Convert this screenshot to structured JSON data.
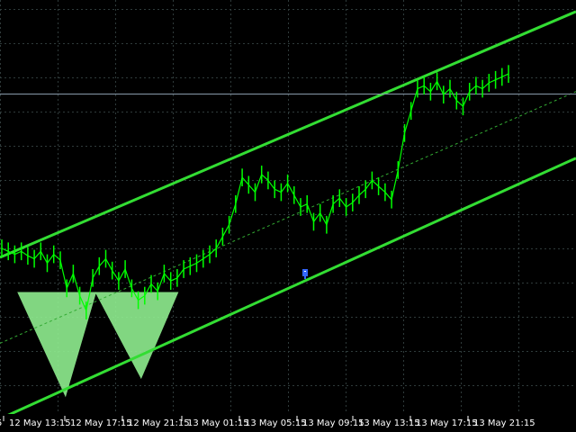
{
  "window": {
    "title": ""
  },
  "colors": {
    "background": "#000000",
    "grid": "#2f3b3b",
    "candles": "#00ff00",
    "channel": "#33dd33",
    "channel_mid": "#33aa33",
    "triangles": "#90ee90",
    "price_line": "#8899aa",
    "axis_text": "#ffffff"
  },
  "chart_data": {
    "type": "line",
    "title": "",
    "xlabel": "",
    "ylabel": "",
    "x_ticks": [
      "12 May 13:15",
      "12 May 17:15",
      "12 May 21:15",
      "13 May 01:15",
      "13 May 05:15",
      "13 May 09:15",
      "13 May 13:15",
      "13 May 17:15",
      "13 May 21:15"
    ],
    "grid": true,
    "legend": "none",
    "series": [
      {
        "values": [
          0.62,
          0.6,
          0.58,
          0.6,
          0.57,
          0.55,
          0.6,
          0.52,
          0.58,
          0.54,
          0.35,
          0.45,
          0.3,
          0.2,
          0.42,
          0.5,
          0.55,
          0.47,
          0.4,
          0.48,
          0.35,
          0.27,
          0.3,
          0.38,
          0.33,
          0.45,
          0.4,
          0.42,
          0.48,
          0.5,
          0.52,
          0.55,
          0.58,
          0.62,
          0.7,
          0.78,
          0.92,
          1.1,
          1.05,
          1.0,
          1.12,
          1.08,
          1.02,
          1.0,
          1.06,
          0.98,
          0.9,
          0.92,
          0.8,
          0.86,
          0.78,
          0.92,
          0.96,
          0.9,
          0.93,
          0.98,
          1.02,
          1.08,
          1.04,
          1.0,
          0.95,
          1.15,
          1.4,
          1.55,
          1.7,
          1.72,
          1.68,
          1.75,
          1.66,
          1.7,
          1.62,
          1.58,
          1.68,
          1.72,
          1.7,
          1.74,
          1.76,
          1.78,
          1.8
        ]
      }
    ],
    "channel": {
      "upper_start": 0.62,
      "upper_end": 2.1,
      "lower_start": -0.35,
      "lower_end": 1.2,
      "mid_start": 0.1,
      "mid_end": 1.62
    },
    "price_level": 1.68,
    "triangles": [
      {
        "from": 0.0,
        "apex": 0.22,
        "to": 0.36
      },
      {
        "from": 0.36,
        "apex": 0.57,
        "to": 0.74
      }
    ]
  }
}
